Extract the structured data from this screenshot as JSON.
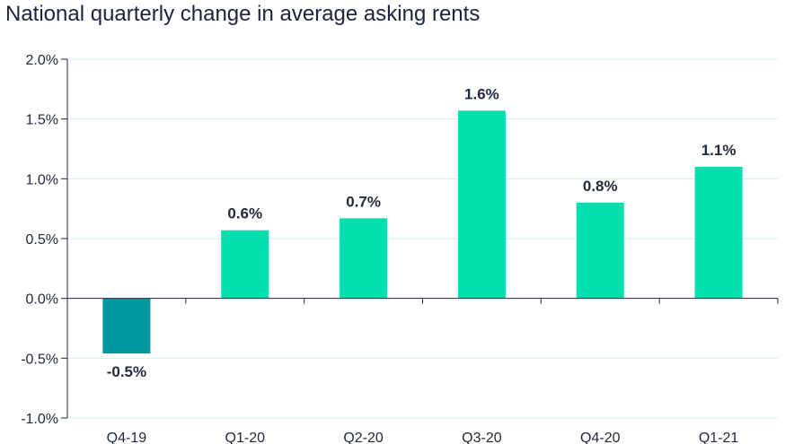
{
  "chart_data": {
    "type": "bar",
    "title": "National quarterly change in average asking rents",
    "categories": [
      "Q4-19",
      "Q1-20",
      "Q2-20",
      "Q3-20",
      "Q4-20",
      "Q1-21"
    ],
    "values": [
      -0.46,
      0.57,
      0.67,
      1.57,
      0.8,
      1.1
    ],
    "data_labels": [
      "-0.5%",
      "0.6%",
      "0.7%",
      "1.6%",
      "0.8%",
      "1.1%"
    ],
    "ylim": [
      -1.0,
      2.0
    ],
    "yticks": [
      2.0,
      1.5,
      1.0,
      0.5,
      0.0,
      -0.5,
      -1.0
    ],
    "ytick_labels": [
      "2.0%",
      "1.5%",
      "1.0%",
      "0.5%",
      "0.0%",
      "-0.5%",
      "-1.0%"
    ],
    "xlabel": "",
    "ylabel": "",
    "grid": true,
    "legend": "none",
    "colors": {
      "positive": "#00dfae",
      "negative": "#00979f",
      "grid": "#d6eef0",
      "axis": "#222a3d"
    }
  }
}
